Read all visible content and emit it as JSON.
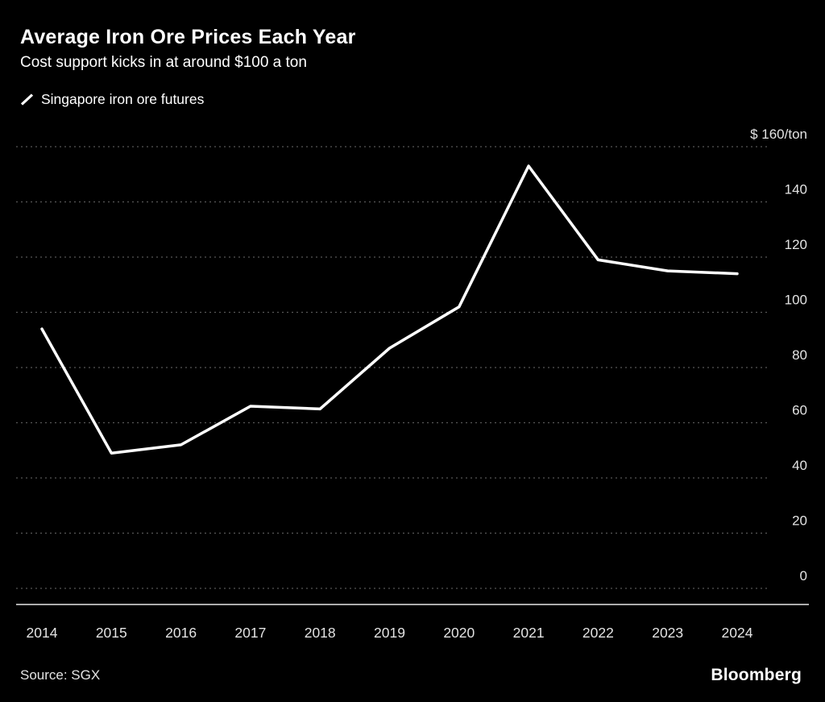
{
  "header": {
    "title": "Average Iron Ore Prices Each Year",
    "subtitle": "Cost support kicks in at around $100 a ton"
  },
  "legend": {
    "label": "Singapore iron ore futures"
  },
  "footer": {
    "source_label": "Source: SGX",
    "brand": "Bloomberg"
  },
  "chart_data": {
    "type": "line",
    "title": "Average Iron Ore Prices Each Year",
    "subtitle": "Cost support kicks in at around $100 a ton",
    "x": [
      2014,
      2015,
      2016,
      2017,
      2018,
      2019,
      2020,
      2021,
      2022,
      2023,
      2024
    ],
    "series": [
      {
        "name": "Singapore iron ore futures",
        "values": [
          94,
          49,
          52,
          66,
          65,
          87,
          102,
          153,
          119,
          115,
          114
        ]
      }
    ],
    "xlabel": "",
    "ylabel_top": "$ 160/ton",
    "y_ticks": [
      160,
      140,
      120,
      100,
      80,
      60,
      40,
      20,
      0
    ],
    "ylim": [
      0,
      160
    ],
    "grid": "dotted-horizontal",
    "legend_position": "top-left",
    "colors": {
      "background": "#000000",
      "line": "#ffffff",
      "grid": "#575757",
      "tick_text": "#e3e3e3",
      "axis": "#e6e6e6"
    }
  }
}
